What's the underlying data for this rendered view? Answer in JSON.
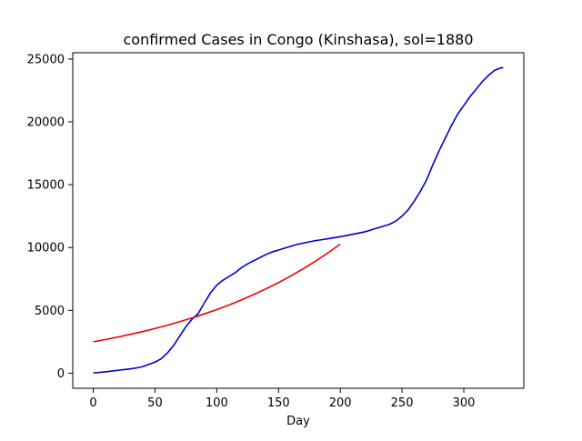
{
  "chart_data": {
    "type": "line",
    "title": "confirmed Cases in Congo (Kinshasa), sol=1880",
    "xlabel": "Day",
    "ylabel": "",
    "xlim": [
      -16.6,
      348.6
    ],
    "ylim": [
      -1200,
      25500
    ],
    "xticks": [
      0,
      50,
      100,
      150,
      200,
      250,
      300
    ],
    "yticks": [
      0,
      5000,
      10000,
      15000,
      20000,
      25000
    ],
    "grid": false,
    "legend": "none",
    "series": [
      {
        "color": "#0000cc",
        "x": [
          0,
          5,
          10,
          15,
          20,
          25,
          30,
          35,
          40,
          45,
          50,
          55,
          60,
          65,
          70,
          75,
          80,
          85,
          90,
          95,
          100,
          105,
          110,
          115,
          120,
          125,
          130,
          135,
          140,
          145,
          150,
          155,
          160,
          165,
          170,
          175,
          180,
          185,
          190,
          195,
          200,
          205,
          210,
          215,
          220,
          225,
          230,
          235,
          240,
          245,
          250,
          255,
          260,
          265,
          270,
          275,
          280,
          285,
          290,
          295,
          300,
          305,
          310,
          315,
          320,
          325,
          330,
          332
        ],
        "y": [
          20,
          60,
          110,
          170,
          230,
          290,
          340,
          420,
          520,
          700,
          880,
          1150,
          1600,
          2200,
          2950,
          3700,
          4300,
          4750,
          5600,
          6400,
          7000,
          7400,
          7700,
          8000,
          8400,
          8700,
          8950,
          9200,
          9450,
          9650,
          9800,
          9950,
          10100,
          10250,
          10350,
          10450,
          10550,
          10620,
          10700,
          10780,
          10860,
          10950,
          11050,
          11150,
          11250,
          11400,
          11550,
          11700,
          11850,
          12100,
          12500,
          13000,
          13700,
          14500,
          15400,
          16600,
          17700,
          18700,
          19700,
          20600,
          21300,
          22000,
          22600,
          23200,
          23700,
          24100,
          24300,
          24300
        ]
      },
      {
        "color": "#ee0000",
        "x": [
          0,
          10,
          20,
          30,
          40,
          50,
          60,
          70,
          80,
          90,
          100,
          110,
          120,
          130,
          140,
          150,
          160,
          170,
          180,
          190,
          200
        ],
        "y": [
          2500,
          2680,
          2880,
          3090,
          3310,
          3560,
          3810,
          4100,
          4400,
          4720,
          5060,
          5430,
          5830,
          6260,
          6720,
          7210,
          7740,
          8310,
          8920,
          9570,
          10270
        ]
      }
    ]
  }
}
